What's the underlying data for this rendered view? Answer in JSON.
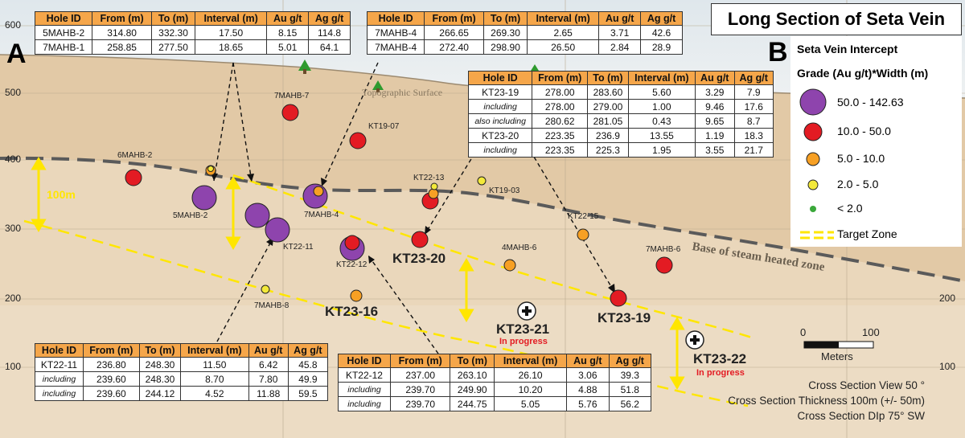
{
  "title": "Long Section of Seta Vein",
  "panel_a": "A",
  "panel_b": "B",
  "y_axis_ticks": [
    "600",
    "500",
    "400",
    "300",
    "200",
    "100"
  ],
  "surface_labels": {
    "topographic": "Topographic Surface",
    "base_steam": "Base of steam heated zone",
    "thickness_marker": "100m"
  },
  "legend": {
    "title_line1": "Seta Vein Intercept",
    "title_line2": "Grade (Au g/t)*Width (m)",
    "items": [
      {
        "label": "50.0 - 142.63",
        "color": "#8e44ad"
      },
      {
        "label": "10.0 - 50.0",
        "color": "#e31b23"
      },
      {
        "label": "5.0 - 10.0",
        "color": "#f7a024"
      },
      {
        "label": "2.0 - 5.0",
        "color": "#f3e93a"
      },
      {
        "label": "< 2.0",
        "color": "#3aa83a"
      }
    ],
    "target_zone_label": "Target Zone"
  },
  "scale_bar": {
    "start": "0",
    "end": "100",
    "unit": "Meters"
  },
  "section_notes": [
    "Cross Section View 50 °",
    "Cross Section Thickness 100m (+/- 50m)",
    "Cross Section DIp 75° SW"
  ],
  "drill_labels": [
    "6MAHB-2",
    "5MAHB-2",
    "7MAHB-7",
    "KT19-07",
    "KT22-11",
    "7MAHB-4",
    "KT22-13",
    "KT19-03",
    "KT22-12",
    "KT22-15",
    "4MAHB-6",
    "7MAHB-6",
    "7MAHB-8"
  ],
  "big_labels": {
    "kt23_16": "KT23-16",
    "kt23_20": "KT23-20",
    "kt23_19": "KT23-19",
    "kt23_21": "KT23-21",
    "kt23_22": "KT23-22",
    "in_progress": "In progress"
  },
  "table_headers": [
    "Hole ID",
    "From (m)",
    "To (m)",
    "Interval (m)",
    "Au g/t",
    "Ag g/t"
  ],
  "table_headers_kt2211": [
    "Hole ID",
    "From (m)",
    "To (m)",
    "Interval (m)",
    "Au g/t",
    "Ag g/t"
  ],
  "tables": {
    "mahb_left": [
      [
        "5MAHB-2",
        "314.80",
        "332.30",
        "17.50",
        "8.15",
        "114.8"
      ],
      [
        "7MAHB-1",
        "258.85",
        "277.50",
        "18.65",
        "5.01",
        "64.1"
      ]
    ],
    "mahb_right": [
      [
        "7MAHB-4",
        "266.65",
        "269.30",
        "2.65",
        "3.71",
        "42.6"
      ],
      [
        "7MAHB-4",
        "272.40",
        "298.90",
        "26.50",
        "2.84",
        "28.9"
      ]
    ],
    "kt23": [
      [
        "KT23-19",
        "278.00",
        "283.60",
        "5.60",
        "3.29",
        "7.9"
      ],
      [
        "including",
        "278.00",
        "279.00",
        "1.00",
        "9.46",
        "17.6"
      ],
      [
        "also including",
        "280.62",
        "281.05",
        "0.43",
        "9.65",
        "8.7"
      ],
      [
        "KT23-20",
        "223.35",
        "236.9",
        "13.55",
        "1.19",
        "18.3"
      ],
      [
        "including",
        "223.35",
        "225.3",
        "1.95",
        "3.55",
        "21.7"
      ]
    ],
    "kt2211": [
      [
        "KT22-11",
        "236.80",
        "248.30",
        "11.50",
        "6.42",
        "45.8"
      ],
      [
        "including",
        "239.60",
        "248.30",
        "8.70",
        "7.80",
        "49.9"
      ],
      [
        "including",
        "239.60",
        "244.12",
        "4.52",
        "11.88",
        "59.5"
      ]
    ],
    "kt2212": [
      [
        "KT22-12",
        "237.00",
        "263.10",
        "26.10",
        "3.06",
        "39.3"
      ],
      [
        "including",
        "239.70",
        "249.90",
        "10.20",
        "4.88",
        "51.8"
      ],
      [
        "including",
        "239.70",
        "244.75",
        "5.05",
        "5.76",
        "56.2"
      ]
    ]
  }
}
